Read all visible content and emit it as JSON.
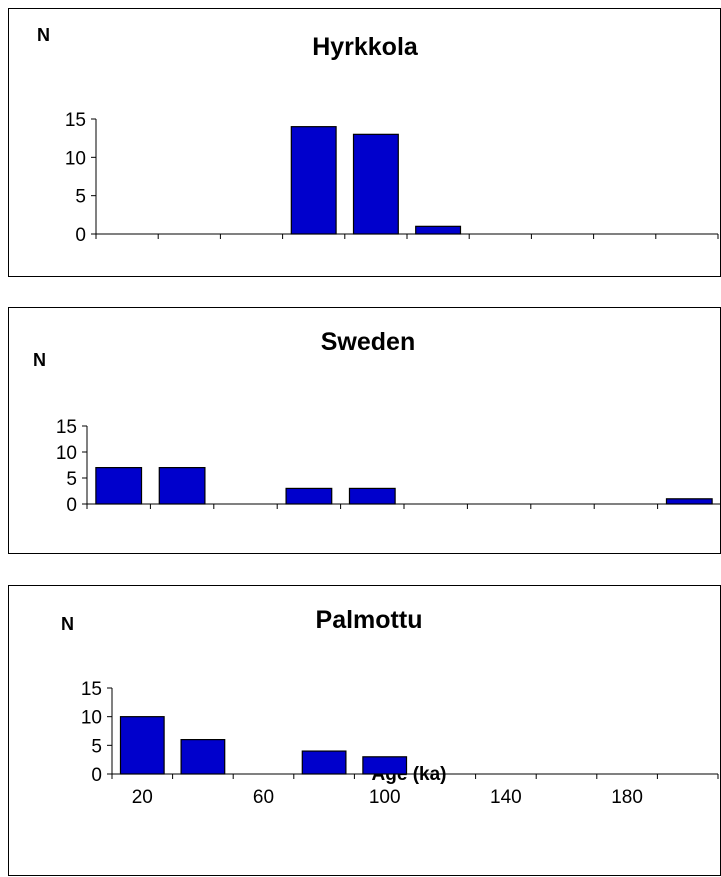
{
  "chart_data": [
    {
      "type": "bar",
      "title": "Hyrkkola",
      "ylabel": "N",
      "ylim": [
        0,
        15
      ],
      "yticks": [
        "0",
        "5",
        "10",
        "15"
      ],
      "bin_starts": [
        0,
        20,
        40,
        60,
        80,
        100,
        120,
        140,
        160,
        180
      ],
      "values": [
        0,
        0,
        0,
        14,
        13,
        1,
        0,
        0,
        0,
        0
      ]
    },
    {
      "type": "bar",
      "title": "Sweden",
      "ylabel": "N",
      "ylim": [
        0,
        15
      ],
      "yticks": [
        "0",
        "5",
        "10",
        "15"
      ],
      "bin_starts": [
        0,
        20,
        40,
        60,
        80,
        100,
        120,
        140,
        160,
        180
      ],
      "values": [
        7,
        7,
        0,
        3,
        3,
        0,
        0,
        0,
        0,
        1
      ]
    },
    {
      "type": "bar",
      "title": "Palmottu",
      "ylabel": "N",
      "xlabel": "Age (ka)",
      "ylim": [
        0,
        15
      ],
      "yticks": [
        "0",
        "5",
        "10",
        "15"
      ],
      "xticklabels": [
        "20",
        "60",
        "100",
        "140",
        "180"
      ],
      "bin_starts": [
        0,
        20,
        40,
        60,
        80,
        100,
        120,
        140,
        160,
        180
      ],
      "values": [
        10,
        6,
        0,
        4,
        3,
        0,
        0,
        0,
        0,
        0
      ]
    }
  ],
  "colors": {
    "bar_fill": "#0000cc",
    "bar_stroke": "#000000"
  }
}
